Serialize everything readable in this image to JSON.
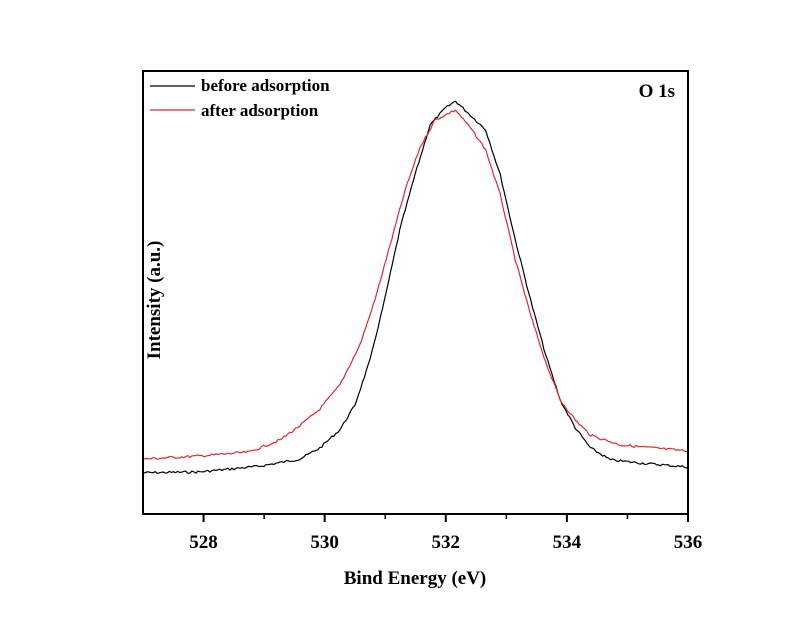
{
  "chart_data": {
    "type": "line",
    "title": "",
    "annotation": "O 1s",
    "xlabel": "Bind Energy (eV)",
    "ylabel": "Intensity (a.u.)",
    "xlim": [
      527,
      536
    ],
    "ylim": [
      0,
      1
    ],
    "x_ticks": [
      528,
      530,
      532,
      534,
      536
    ],
    "x_tick_labels": [
      "528",
      "530",
      "532",
      "534",
      "536"
    ],
    "x_minor_ticks": [
      529,
      531,
      533,
      535
    ],
    "y_ticks_shown": false,
    "grid": false,
    "legend": {
      "placement": "top-left",
      "entries": [
        "before adsorption",
        "after adsorption"
      ]
    },
    "series": [
      {
        "name": "before adsorption",
        "color": "#000000",
        "x": [
          527.0,
          527.94,
          528.93,
          529.59,
          529.92,
          530.25,
          530.5,
          530.75,
          530.99,
          531.24,
          531.49,
          531.74,
          531.99,
          532.16,
          532.41,
          532.66,
          532.9,
          533.15,
          533.4,
          533.65,
          533.89,
          534.14,
          534.39,
          534.72,
          535.22,
          536.0
        ],
        "y": [
          0.093,
          0.095,
          0.108,
          0.124,
          0.149,
          0.19,
          0.246,
          0.348,
          0.483,
          0.641,
          0.765,
          0.878,
          0.916,
          0.932,
          0.9,
          0.867,
          0.765,
          0.618,
          0.483,
          0.359,
          0.257,
          0.194,
          0.149,
          0.122,
          0.115,
          0.106
        ]
      },
      {
        "name": "after adsorption",
        "color": "#e8262d",
        "x": [
          527.0,
          527.94,
          528.76,
          529.26,
          529.59,
          529.92,
          530.25,
          530.58,
          530.83,
          531.08,
          531.33,
          531.57,
          531.82,
          532.16,
          532.41,
          532.66,
          532.9,
          533.15,
          533.4,
          533.65,
          533.89,
          534.14,
          534.39,
          534.88,
          536.0
        ],
        "y": [
          0.124,
          0.131,
          0.14,
          0.167,
          0.199,
          0.237,
          0.291,
          0.381,
          0.483,
          0.607,
          0.731,
          0.826,
          0.889,
          0.912,
          0.871,
          0.822,
          0.72,
          0.573,
          0.449,
          0.343,
          0.257,
          0.212,
          0.178,
          0.156,
          0.142
        ]
      }
    ]
  }
}
